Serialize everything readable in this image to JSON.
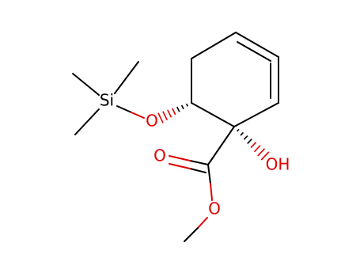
{
  "atoms": {
    "si": "Si",
    "o_ether": "O",
    "oh": "OH",
    "o_carbonyl": "O",
    "o_ester": "O"
  }
}
